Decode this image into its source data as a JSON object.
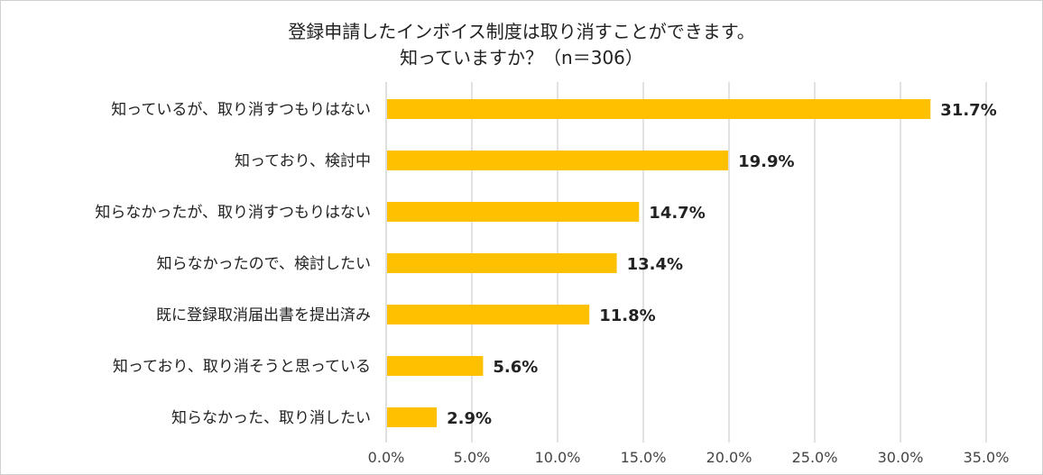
{
  "chart_data": {
    "type": "bar",
    "orientation": "horizontal",
    "title_lines": [
      "登録申請したインボイス制度は取り消すことができます。",
      "知っていますか？（n＝306）"
    ],
    "categories": [
      "知っているが、取り消すつもりはない",
      "知っており、検討中",
      "知らなかったが、取り消すつもりはない",
      "知らなかったので、検討したい",
      "既に登録取消届出書を提出済み",
      "知っており、取り消そうと思っている",
      "知らなかった、取り消したい"
    ],
    "values": [
      31.7,
      19.9,
      14.7,
      13.4,
      11.8,
      5.6,
      2.9
    ],
    "value_labels": [
      "31.7%",
      "19.9%",
      "14.7%",
      "13.4%",
      "11.8%",
      "5.6%",
      "2.9%"
    ],
    "xlim": [
      0,
      35
    ],
    "xticks": [
      0,
      5,
      10,
      15,
      20,
      25,
      30,
      35
    ],
    "xtick_labels": [
      "0.0%",
      "5.0%",
      "10.0%",
      "15.0%",
      "20.0%",
      "25.0%",
      "30.0%",
      "35.0%"
    ],
    "grid": true,
    "bar_color": "#FFC000"
  }
}
